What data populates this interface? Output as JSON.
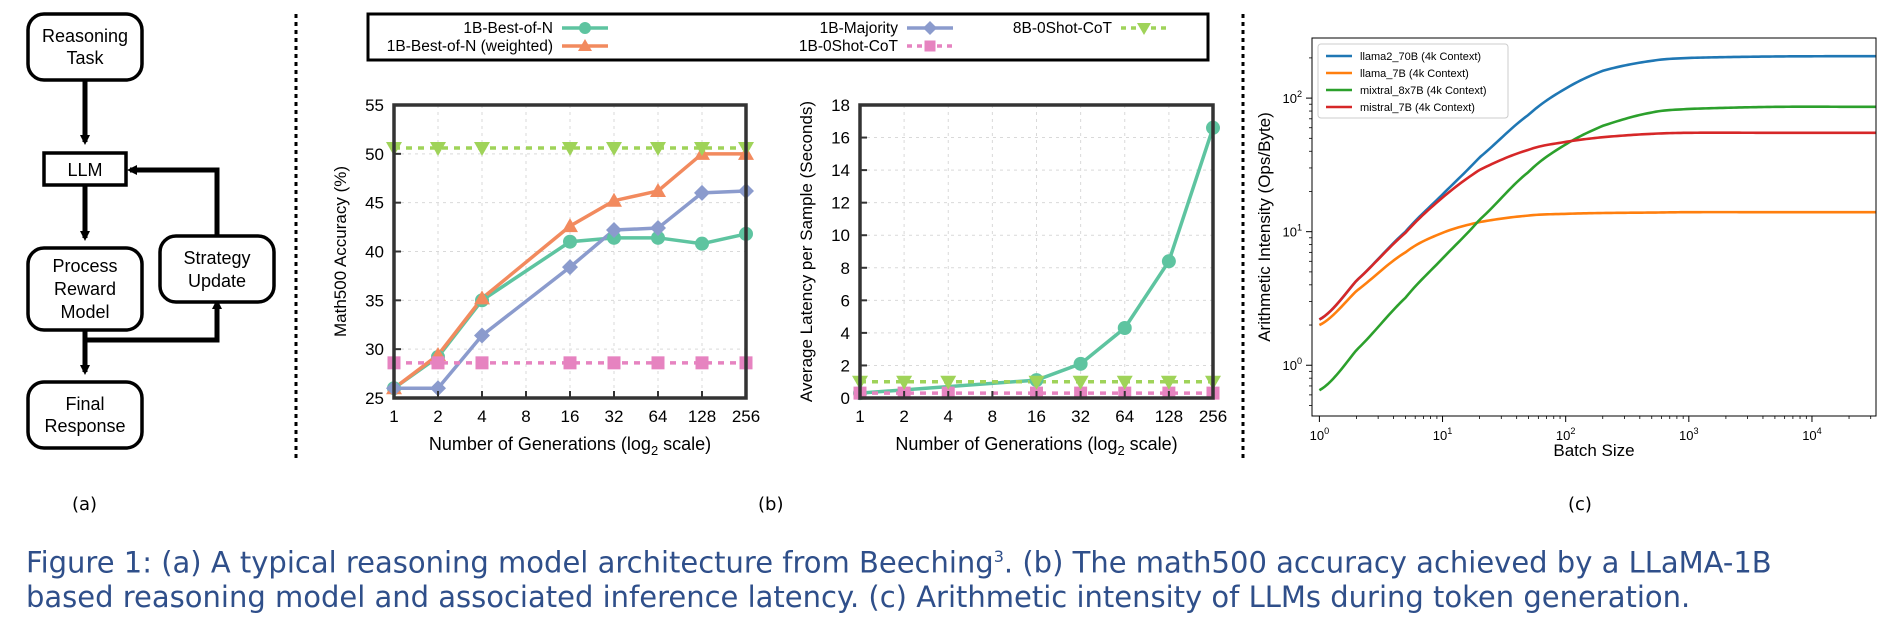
{
  "diagram": {
    "nodes": [
      {
        "id": "task",
        "lines": [
          "Reasoning",
          "Task"
        ]
      },
      {
        "id": "llm",
        "lines": [
          "LLM"
        ]
      },
      {
        "id": "prm",
        "lines": [
          "Process",
          "Reward",
          "Model"
        ]
      },
      {
        "id": "strategy",
        "lines": [
          "Strategy",
          "Update"
        ]
      },
      {
        "id": "final",
        "lines": [
          "Final",
          "Response"
        ]
      }
    ]
  },
  "sublabels": {
    "a": "(a)",
    "b": "(b)",
    "c": "(c)"
  },
  "caption": {
    "line1_a": "Figure 1: (a) A typical reasoning model architecture from Beeching",
    "line1_sup": "3",
    "line1_b": ". (b) The math500 accuracy achieved by a LLaMA-1B",
    "line2": "based reasoning model and associated inference latency. (c) Arithmetic intensity of LLMs during token generation."
  },
  "legend_b": [
    {
      "name": "1B-Best-of-N",
      "color": "#5ec4a0",
      "marker": "circle",
      "dash": false
    },
    {
      "name": "1B-Best-of-N (weighted)",
      "color": "#f28a5e",
      "marker": "triangle-up",
      "dash": false
    },
    {
      "name": "1B-Majority",
      "color": "#8b9bcd",
      "marker": "diamond",
      "dash": false
    },
    {
      "name": "1B-0Shot-CoT",
      "color": "#e683c0",
      "marker": "square",
      "dash": true
    },
    {
      "name": "8B-0Shot-CoT",
      "color": "#9fd359",
      "marker": "triangle-down",
      "dash": true
    }
  ],
  "chart_data": [
    {
      "type": "line",
      "xlabel": "Number of Generations (log2 scale)",
      "ylabel": "Math500 Accuracy (%)",
      "x_ticks": [
        "1",
        "2",
        "4",
        "8",
        "16",
        "32",
        "64",
        "128",
        "256"
      ],
      "x_scale": "log2",
      "ylim": [
        25,
        55
      ],
      "y_ticks": [
        25,
        30,
        35,
        40,
        45,
        50,
        55
      ],
      "grid": true,
      "series": [
        {
          "name": "1B-Best-of-N",
          "color": "#5ec4a0",
          "marker": "circle",
          "x": [
            1,
            2,
            4,
            16,
            32,
            64,
            128,
            256
          ],
          "values": [
            26.0,
            29.2,
            35.0,
            41.0,
            41.4,
            41.4,
            40.8,
            41.8
          ]
        },
        {
          "name": "1B-Best-of-N (weighted)",
          "color": "#f28a5e",
          "marker": "triangle-up",
          "x": [
            1,
            2,
            4,
            16,
            32,
            64,
            128,
            256
          ],
          "values": [
            26.0,
            29.4,
            35.2,
            42.6,
            45.2,
            46.2,
            50.0,
            50.0
          ]
        },
        {
          "name": "1B-Majority",
          "color": "#8b9bcd",
          "marker": "diamond",
          "x": [
            1,
            2,
            4,
            16,
            32,
            64,
            128,
            256
          ],
          "values": [
            26.0,
            26.0,
            31.4,
            38.4,
            42.2,
            42.4,
            46.0,
            46.2
          ]
        },
        {
          "name": "1B-0Shot-CoT",
          "color": "#e683c0",
          "marker": "square",
          "dash": true,
          "x": [
            1,
            2,
            4,
            16,
            32,
            64,
            128,
            256
          ],
          "values": [
            28.6,
            28.6,
            28.6,
            28.6,
            28.6,
            28.6,
            28.6,
            28.6
          ]
        },
        {
          "name": "8B-0Shot-CoT",
          "color": "#9fd359",
          "marker": "triangle-down",
          "dash": true,
          "x": [
            1,
            2,
            4,
            16,
            32,
            64,
            128,
            256
          ],
          "values": [
            50.6,
            50.6,
            50.6,
            50.6,
            50.6,
            50.6,
            50.6,
            50.6
          ]
        }
      ]
    },
    {
      "type": "line",
      "xlabel": "Number of Generations (log2 scale)",
      "ylabel": "Average Latency per Sample (Seconds)",
      "x_ticks": [
        "1",
        "2",
        "4",
        "8",
        "16",
        "32",
        "64",
        "128",
        "256"
      ],
      "x_scale": "log2",
      "ylim": [
        0,
        18
      ],
      "y_ticks": [
        0,
        2,
        4,
        6,
        8,
        10,
        12,
        14,
        16,
        18
      ],
      "grid": true,
      "series": [
        {
          "name": "1B-Best-of-N",
          "color": "#5ec4a0",
          "marker": "circle",
          "x": [
            1,
            16,
            32,
            64,
            128,
            256
          ],
          "values": [
            0.3,
            1.1,
            2.1,
            4.3,
            8.4,
            16.6
          ]
        },
        {
          "name": "1B-0Shot-CoT",
          "color": "#e683c0",
          "marker": "square",
          "dash": true,
          "x": [
            1,
            2,
            4,
            16,
            32,
            64,
            128,
            256
          ],
          "values": [
            0.3,
            0.3,
            0.3,
            0.3,
            0.3,
            0.3,
            0.3,
            0.3
          ]
        },
        {
          "name": "8B-0Shot-CoT",
          "color": "#9fd359",
          "marker": "triangle-down",
          "dash": true,
          "x": [
            1,
            2,
            4,
            16,
            32,
            64,
            128,
            256
          ],
          "values": [
            1.0,
            1.0,
            1.0,
            1.0,
            1.0,
            1.0,
            1.0,
            1.0
          ]
        }
      ]
    },
    {
      "type": "line",
      "xlabel": "Batch Size",
      "ylabel": "Arithmetic Intensity (Ops/Byte)",
      "x_scale": "log10",
      "y_scale": "log10",
      "x_ticks": [
        "10^0",
        "10^1",
        "10^2",
        "10^3",
        "10^4"
      ],
      "y_ticks": [
        "10^0",
        "10^1",
        "10^2"
      ],
      "xlim": [
        1,
        32768
      ],
      "grid": false,
      "legend": "top-left",
      "series": [
        {
          "name": "llama2_70B (4k Context)",
          "color": "#1f77b4",
          "x": [
            1,
            2,
            5,
            10,
            20,
            50,
            100,
            200,
            500,
            1000,
            5000,
            32768
          ],
          "values": [
            2.2,
            4.3,
            10,
            19,
            36,
            75,
            118,
            160,
            190,
            200,
            205,
            206
          ]
        },
        {
          "name": "llama_7B (4k Context)",
          "color": "#ff7f0e",
          "x": [
            1,
            2,
            5,
            10,
            20,
            50,
            100,
            200,
            500,
            1000,
            5000,
            32768
          ],
          "values": [
            2.0,
            3.6,
            7,
            9.8,
            11.8,
            13.2,
            13.6,
            13.8,
            13.9,
            14,
            14,
            14
          ]
        },
        {
          "name": "mixtral_8x7B (4k Context)",
          "color": "#2ca02c",
          "x": [
            1,
            2,
            5,
            10,
            20,
            50,
            100,
            200,
            500,
            1000,
            5000,
            32768
          ],
          "values": [
            0.65,
            1.3,
            3.2,
            6.3,
            12.3,
            28,
            45,
            62,
            78,
            83,
            86,
            86
          ]
        },
        {
          "name": "mistral_7B (4k Context)",
          "color": "#d62728",
          "x": [
            1,
            2,
            5,
            10,
            20,
            50,
            100,
            200,
            500,
            1000,
            5000,
            32768
          ],
          "values": [
            2.2,
            4.3,
            9.8,
            18,
            29,
            41,
            47,
            51,
            54,
            55,
            55,
            55
          ]
        }
      ]
    }
  ]
}
